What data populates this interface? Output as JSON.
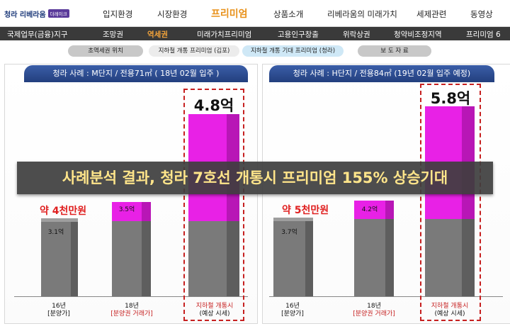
{
  "header": {
    "logo_text": "청라 리베라움",
    "logo_badge": "더레이크",
    "nav": [
      "입지환경",
      "시장환경",
      "프리미엄",
      "상품소개",
      "리베라움의 미래가치",
      "세제관련",
      "동영상"
    ]
  },
  "subnav": [
    "국제업무(금융)지구",
    "조망권",
    "역세권",
    "미래가치프리미엄",
    "고용인구창출",
    "위락상권",
    "청약비조정지역",
    "프리미엄 6"
  ],
  "tabs": [
    "초역세권 위치",
    "지하철 개통 프리미엄 (김포)",
    "지하철 개통 기대 프리미엄 (청라)",
    "보 도 자 료"
  ],
  "colors": {
    "accent": "#e8911a",
    "premium": "#e821e6",
    "highlight": "#c62020"
  },
  "banner": "사례분석 결과, 청라 7호선 개통시 프리미엄 155% 상승기대",
  "panels": [
    {
      "title": "청라 사례 : M단지 / 전용71㎡ ( 18년 02월 입주 )",
      "diff": "약 4천만원",
      "bars": [
        {
          "label": "3.1억",
          "cat1": "16년",
          "cat2": "[분양가]"
        },
        {
          "label": "3.5억",
          "cat1": "18년",
          "cat2": "[분양권 거래가]"
        },
        {
          "label": "4.8억",
          "cat1": "지하철 개통시",
          "cat2": "(예상 시세)"
        }
      ]
    },
    {
      "title": "청라 사례 : H단지 / 전용84㎡ (19년 02월 입주 예정)",
      "diff": "약 5천만원",
      "bars": [
        {
          "label": "3.7억",
          "cat1": "16년",
          "cat2": "[분양가]"
        },
        {
          "label": "4.2억",
          "cat1": "18년",
          "cat2": "[분양권 거래가]"
        },
        {
          "label": "5.8억",
          "cat1": "지하철 개통시",
          "cat2": "(예상 시세)"
        }
      ]
    }
  ]
}
